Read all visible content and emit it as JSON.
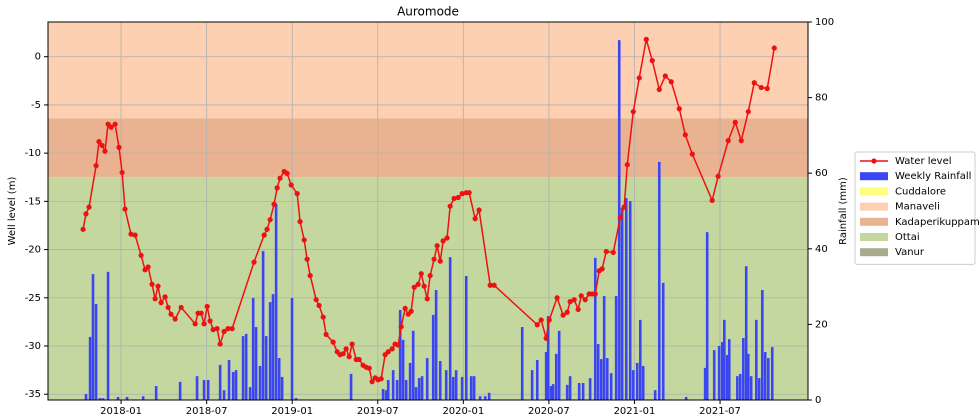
{
  "chart_data": {
    "type": "line",
    "title": "Auromode",
    "ylabel": "Well level (m)",
    "y2label": "Rainfall (mm)",
    "xlim": [
      2017.573,
      2022.014
    ],
    "xticks": [
      {
        "value": 2018.0,
        "label": "2018-01"
      },
      {
        "value": 2018.5,
        "label": "2018-07"
      },
      {
        "value": 2019.0,
        "label": "2019-01"
      },
      {
        "value": 2019.5,
        "label": "2019-07"
      },
      {
        "value": 2020.0,
        "label": "2020-01"
      },
      {
        "value": 2020.5,
        "label": "2020-07"
      },
      {
        "value": 2021.0,
        "label": "2021-01"
      },
      {
        "value": 2021.5,
        "label": "2021-07"
      }
    ],
    "ylim": [
      -35.6,
      3.6
    ],
    "yticks": [
      0,
      -5,
      -10,
      -15,
      -20,
      -25,
      -30,
      -35
    ],
    "y2lim": [
      0,
      100
    ],
    "y2ticks": [
      0,
      20,
      40,
      60,
      80,
      100
    ],
    "grid": true,
    "legend": "right",
    "series": [
      {
        "name": "Water level",
        "type": "line",
        "color": "#ee1111",
        "x": [
          2017.778,
          2017.795,
          2017.813,
          2017.854,
          2017.871,
          2017.889,
          2017.906,
          2017.924,
          2017.942,
          2017.965,
          2017.988,
          2018.006,
          2018.023,
          2018.058,
          2018.082,
          2018.117,
          2018.14,
          2018.158,
          2018.181,
          2018.199,
          2018.216,
          2018.234,
          2018.257,
          2018.275,
          2018.292,
          2018.316,
          2018.351,
          2018.433,
          2018.45,
          2018.468,
          2018.485,
          2018.503,
          2018.52,
          2018.538,
          2018.561,
          2018.579,
          2018.602,
          2018.625,
          2018.649,
          2018.777,
          2018.836,
          2018.853,
          2018.871,
          2018.894,
          2018.912,
          2018.929,
          2018.953,
          2018.97,
          2018.994,
          2019.029,
          2019.046,
          2019.07,
          2019.087,
          2019.105,
          2019.14,
          2019.157,
          2019.181,
          2019.198,
          2019.239,
          2019.263,
          2019.28,
          2019.298,
          2019.315,
          2019.333,
          2019.35,
          2019.374,
          2019.391,
          2019.414,
          2019.432,
          2019.45,
          2019.467,
          2019.485,
          2019.502,
          2019.52,
          2019.543,
          2019.561,
          2019.584,
          2019.601,
          2019.619,
          2019.637,
          2019.66,
          2019.678,
          2019.695,
          2019.713,
          2019.736,
          2019.754,
          2019.771,
          2019.789,
          2019.806,
          2019.829,
          2019.847,
          2019.865,
          2019.882,
          2019.905,
          2019.923,
          2019.946,
          2019.97,
          2019.993,
          2020.017,
          2020.034,
          2020.069,
          2020.092,
          2020.157,
          2020.18,
          2020.432,
          2020.455,
          2020.484,
          2020.502,
          2020.548,
          2020.583,
          2020.607,
          2020.624,
          2020.648,
          2020.671,
          2020.689,
          2020.712,
          2020.735,
          2020.753,
          2020.771,
          2020.794,
          2020.811,
          2020.835,
          2020.876,
          2020.917,
          2020.94,
          2020.958,
          2020.993,
          2021.028,
          2021.069,
          2021.104,
          2021.145,
          2021.18,
          2021.215,
          2021.262,
          2021.297,
          2021.338,
          2021.454,
          2021.489,
          2021.548,
          2021.589,
          2021.624,
          2021.665,
          2021.7,
          2021.741,
          2021.776,
          2021.817
        ],
        "values": [
          -17.9,
          -16.3,
          -15.6,
          -11.3,
          -8.8,
          -9.2,
          -9.8,
          -7.0,
          -7.3,
          -7.0,
          -9.4,
          -12.0,
          -15.8,
          -18.4,
          -18.5,
          -20.6,
          -22.1,
          -21.8,
          -23.6,
          -25.1,
          -23.8,
          -25.5,
          -24.9,
          -26.0,
          -26.7,
          -27.2,
          -26.0,
          -27.7,
          -26.6,
          -26.6,
          -27.7,
          -25.9,
          -27.4,
          -28.3,
          -28.2,
          -29.8,
          -28.5,
          -28.2,
          -28.2,
          -21.3,
          -18.5,
          -17.9,
          -16.9,
          -15.3,
          -13.6,
          -12.6,
          -11.9,
          -12.1,
          -13.3,
          -14.2,
          -17.1,
          -19.0,
          -21.0,
          -22.7,
          -25.2,
          -25.8,
          -27.0,
          -28.8,
          -29.6,
          -30.6,
          -30.9,
          -30.8,
          -30.3,
          -31.1,
          -29.8,
          -31.4,
          -31.4,
          -32.0,
          -32.2,
          -32.3,
          -33.7,
          -33.3,
          -33.5,
          -33.4,
          -30.9,
          -30.6,
          -30.3,
          -29.8,
          -29.9,
          -28.0,
          -26.1,
          -26.7,
          -26.4,
          -23.9,
          -23.6,
          -22.5,
          -23.8,
          -25.1,
          -22.7,
          -21.0,
          -19.6,
          -21.2,
          -19.1,
          -18.8,
          -15.5,
          -14.7,
          -14.6,
          -14.2,
          -14.1,
          -14.1,
          -16.8,
          -15.9,
          -23.7,
          -23.7,
          -27.8,
          -27.3,
          -29.2,
          -27.3,
          -25.0,
          -26.8,
          -26.5,
          -25.4,
          -25.2,
          -26.2,
          -24.8,
          -25.2,
          -24.6,
          -24.6,
          -24.6,
          -22.2,
          -22.0,
          -20.2,
          -20.3,
          -16.7,
          -15.6,
          -11.2,
          -5.7,
          -2.2,
          1.8,
          -0.4,
          -3.4,
          -2.0,
          -2.6,
          -5.4,
          -8.1,
          -10.1,
          -14.9,
          -12.4,
          -8.7,
          -6.8,
          -8.7,
          -5.7,
          -2.7,
          -3.2,
          -3.3,
          0.9
        ]
      },
      {
        "name": "Weekly Rainfall",
        "type": "bar",
        "axis": "y2",
        "color": "#3b46f2",
        "x": [
          2017.795,
          2017.819,
          2017.836,
          2017.854,
          2017.877,
          2017.895,
          2017.924,
          2017.982,
          2018.035,
          2018.129,
          2018.205,
          2018.345,
          2018.444,
          2018.485,
          2018.509,
          2018.579,
          2018.602,
          2018.631,
          2018.655,
          2018.672,
          2018.713,
          2018.731,
          2018.754,
          2018.772,
          2018.789,
          2018.812,
          2018.83,
          2018.848,
          2018.871,
          2018.888,
          2018.906,
          2018.924,
          2018.941,
          2018.999,
          2019.023,
          2019.344,
          2019.531,
          2019.549,
          2019.561,
          2019.59,
          2019.613,
          2019.631,
          2019.648,
          2019.666,
          2019.689,
          2019.707,
          2019.724,
          2019.742,
          2019.759,
          2019.789,
          2019.824,
          2019.841,
          2019.865,
          2019.9,
          2019.923,
          2019.941,
          2019.958,
          2019.993,
          2020.017,
          2020.046,
          2020.063,
          2020.098,
          2020.128,
          2020.151,
          2020.344,
          2020.402,
          2020.432,
          2020.484,
          2020.496,
          2020.513,
          2020.525,
          2020.543,
          2020.56,
          2020.607,
          2020.624,
          2020.677,
          2020.7,
          2020.741,
          2020.771,
          2020.788,
          2020.806,
          2020.823,
          2020.841,
          2020.864,
          2020.893,
          2020.911,
          2020.928,
          2020.952,
          2020.975,
          2020.993,
          2021.016,
          2021.034,
          2021.051,
          2021.121,
          2021.145,
          2021.168,
          2021.302,
          2021.413,
          2021.425,
          2021.466,
          2021.495,
          2021.513,
          2021.525,
          2021.542,
          2021.554,
          2021.601,
          2021.618,
          2021.636,
          2021.653,
          2021.665,
          2021.682,
          2021.712,
          2021.729,
          2021.747,
          2021.764,
          2021.782,
          2021.805
        ],
        "values": [
          1.6,
          16.7,
          33.3,
          25.4,
          0.5,
          0.5,
          33.9,
          0.8,
          0.8,
          1,
          3.7,
          4.8,
          6.3,
          5.3,
          5.3,
          9.3,
          2.6,
          10.6,
          7.4,
          7.9,
          16.9,
          17.5,
          3.4,
          27,
          19.3,
          9,
          39.4,
          16.9,
          25.9,
          28,
          51.9,
          11.1,
          6.1,
          27,
          0.5,
          6.9,
          2.9,
          2.6,
          5.3,
          7.9,
          5.3,
          23.8,
          15.9,
          5.3,
          9.8,
          18.3,
          3.4,
          5.8,
          6.3,
          11.1,
          22.5,
          29.1,
          10.3,
          7.9,
          37.8,
          6.1,
          7.9,
          6.1,
          32.8,
          6.3,
          6.3,
          1,
          1,
          1.9,
          19.3,
          7.9,
          10.6,
          12.7,
          22.2,
          3.7,
          4.2,
          12.2,
          18.3,
          4,
          6.3,
          4.5,
          4.5,
          5.8,
          37.6,
          14.8,
          10.8,
          27.5,
          11.1,
          7.1,
          27.5,
          95.2,
          50.8,
          53.4,
          52.6,
          7.9,
          9.8,
          21.2,
          9,
          2.6,
          63,
          31,
          0.8,
          8.5,
          44.4,
          13.2,
          14.3,
          15.3,
          21.2,
          11.9,
          16.1,
          6.3,
          6.9,
          16.4,
          35.4,
          12.2,
          6.3,
          21.2,
          5.8,
          29.1,
          12.7,
          11.1,
          14
        ]
      },
      {
        "name": "Cuddalore",
        "type": "band",
        "color": "#ffff7f"
      },
      {
        "name": "Manaveli",
        "type": "band",
        "color": "#fdd0b1",
        "range": [
          -6.4,
          3.6
        ]
      },
      {
        "name": "Kadaperikuppam",
        "type": "band",
        "color": "#e9b392",
        "range": [
          -12.5,
          -6.4
        ]
      },
      {
        "name": "Ottai",
        "type": "band",
        "color": "#c3d79e",
        "range": [
          -35.6,
          -12.5
        ]
      },
      {
        "name": "Vanur",
        "type": "band",
        "color": "#a9ab8f"
      }
    ]
  }
}
